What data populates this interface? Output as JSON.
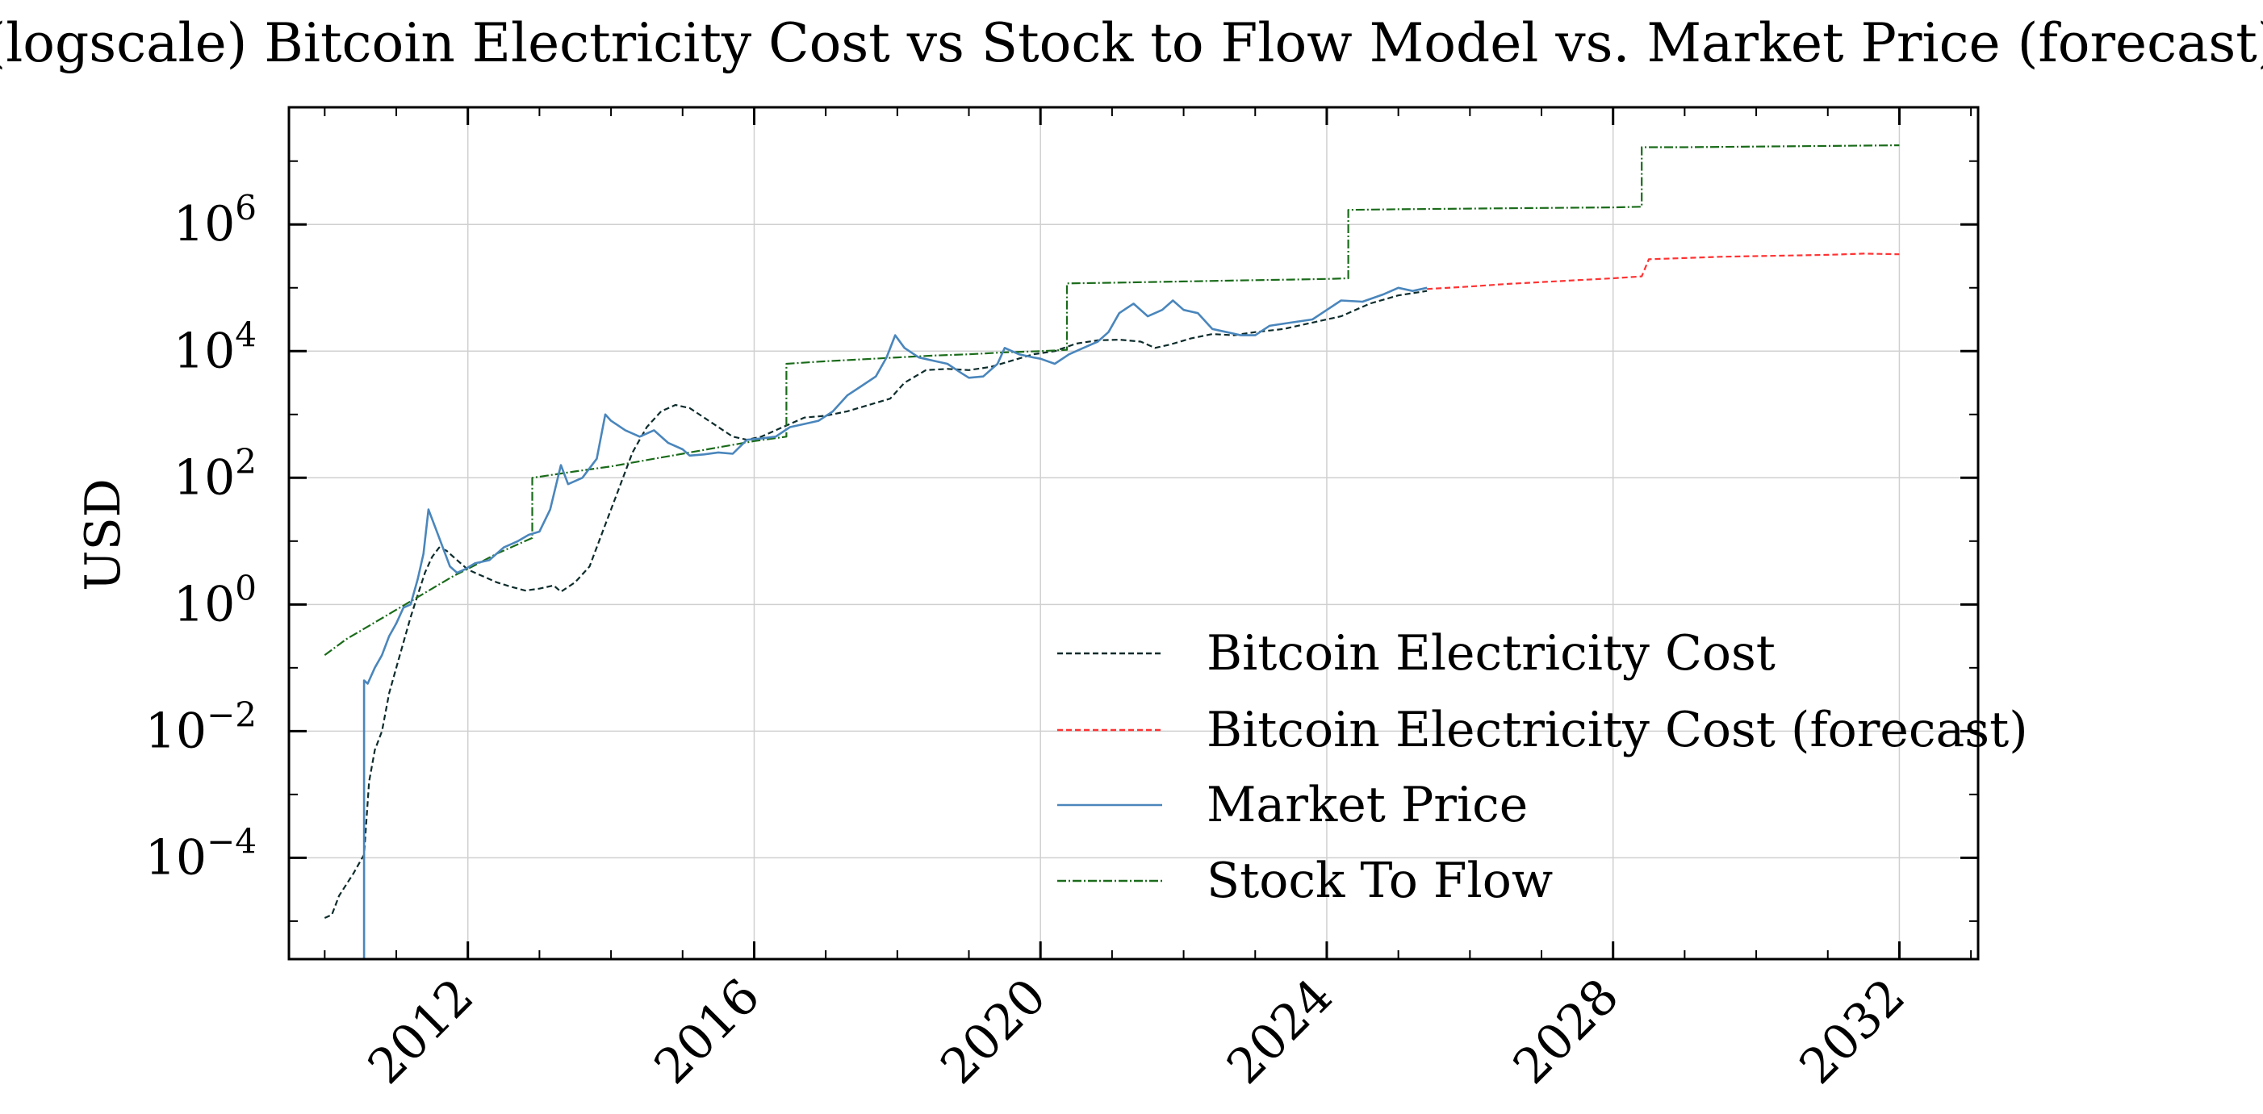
{
  "chart_data": {
    "type": "line",
    "title": "(logscale) Bitcoin Electricity Cost vs Stock to Flow Model vs. Market Price (forecast)",
    "xlabel": "",
    "ylabel": "USD",
    "yscale": "log",
    "xlim": [
      2009.5,
      2033.1
    ],
    "ylim_log10": [
      -5.6,
      7.85
    ],
    "grid": true,
    "legend_position": "lower-right",
    "x_ticks": [
      {
        "value": 2012,
        "label": "2012"
      },
      {
        "value": 2016,
        "label": "2016"
      },
      {
        "value": 2020,
        "label": "2020"
      },
      {
        "value": 2024,
        "label": "2024"
      },
      {
        "value": 2028,
        "label": "2028"
      },
      {
        "value": 2032,
        "label": "2032"
      }
    ],
    "y_ticks": [
      {
        "exp": -4,
        "base": "10",
        "sup": "−4"
      },
      {
        "exp": -2,
        "base": "10",
        "sup": "−2"
      },
      {
        "exp": 0,
        "base": "10",
        "sup": "0"
      },
      {
        "exp": 2,
        "base": "10",
        "sup": "2"
      },
      {
        "exp": 4,
        "base": "10",
        "sup": "4"
      },
      {
        "exp": 6,
        "base": "10",
        "sup": "6"
      }
    ],
    "series": [
      {
        "name": "Bitcoin Electricity Cost",
        "color": "#0d2b2b",
        "dash": "7,4",
        "points_log10": [
          [
            2010.0,
            -4.95
          ],
          [
            2010.1,
            -4.9
          ],
          [
            2010.2,
            -4.6
          ],
          [
            2010.4,
            -4.25
          ],
          [
            2010.55,
            -3.95
          ],
          [
            2010.62,
            -2.8
          ],
          [
            2010.7,
            -2.3
          ],
          [
            2010.8,
            -2.0
          ],
          [
            2010.9,
            -1.4
          ],
          [
            2011.0,
            -1.0
          ],
          [
            2011.1,
            -0.6
          ],
          [
            2011.2,
            -0.2
          ],
          [
            2011.3,
            0.15
          ],
          [
            2011.4,
            0.5
          ],
          [
            2011.5,
            0.75
          ],
          [
            2011.6,
            0.9
          ],
          [
            2011.7,
            0.85
          ],
          [
            2011.85,
            0.7
          ],
          [
            2012.0,
            0.55
          ],
          [
            2012.2,
            0.45
          ],
          [
            2012.4,
            0.35
          ],
          [
            2012.6,
            0.28
          ],
          [
            2012.8,
            0.22
          ],
          [
            2013.0,
            0.25
          ],
          [
            2013.2,
            0.3
          ],
          [
            2013.3,
            0.2
          ],
          [
            2013.5,
            0.35
          ],
          [
            2013.7,
            0.6
          ],
          [
            2013.9,
            1.2
          ],
          [
            2014.1,
            1.8
          ],
          [
            2014.3,
            2.4
          ],
          [
            2014.5,
            2.8
          ],
          [
            2014.7,
            3.05
          ],
          [
            2014.9,
            3.15
          ],
          [
            2015.1,
            3.1
          ],
          [
            2015.3,
            2.95
          ],
          [
            2015.5,
            2.8
          ],
          [
            2015.7,
            2.65
          ],
          [
            2015.9,
            2.6
          ],
          [
            2016.1,
            2.65
          ],
          [
            2016.3,
            2.75
          ],
          [
            2016.5,
            2.85
          ],
          [
            2016.7,
            2.95
          ],
          [
            2017.0,
            2.98
          ],
          [
            2017.3,
            3.05
          ],
          [
            2017.6,
            3.15
          ],
          [
            2017.9,
            3.25
          ],
          [
            2018.1,
            3.5
          ],
          [
            2018.4,
            3.7
          ],
          [
            2018.7,
            3.72
          ],
          [
            2019.0,
            3.7
          ],
          [
            2019.3,
            3.75
          ],
          [
            2019.6,
            3.85
          ],
          [
            2019.9,
            3.95
          ],
          [
            2020.2,
            4.0
          ],
          [
            2020.5,
            4.12
          ],
          [
            2020.8,
            4.17
          ],
          [
            2021.1,
            4.18
          ],
          [
            2021.4,
            4.15
          ],
          [
            2021.6,
            4.05
          ],
          [
            2021.8,
            4.1
          ],
          [
            2022.1,
            4.2
          ],
          [
            2022.4,
            4.27
          ],
          [
            2022.7,
            4.25
          ],
          [
            2023.0,
            4.3
          ],
          [
            2023.4,
            4.35
          ],
          [
            2023.8,
            4.45
          ],
          [
            2024.2,
            4.55
          ],
          [
            2024.6,
            4.75
          ],
          [
            2025.0,
            4.88
          ],
          [
            2025.4,
            4.95
          ]
        ]
      },
      {
        "name": "Bitcoin Electricity Cost (forecast)",
        "color": "#ff3333",
        "dash": "7,4",
        "points_log10": [
          [
            2025.4,
            4.98
          ],
          [
            2026.0,
            5.02
          ],
          [
            2026.5,
            5.06
          ],
          [
            2027.0,
            5.09
          ],
          [
            2027.5,
            5.12
          ],
          [
            2028.0,
            5.15
          ],
          [
            2028.4,
            5.18
          ],
          [
            2028.5,
            5.45
          ],
          [
            2029.0,
            5.47
          ],
          [
            2029.5,
            5.49
          ],
          [
            2030.0,
            5.5
          ],
          [
            2030.5,
            5.51
          ],
          [
            2031.0,
            5.52
          ],
          [
            2031.5,
            5.54
          ],
          [
            2032.0,
            5.53
          ]
        ]
      },
      {
        "name": "Market Price",
        "color": "#4a86bc",
        "dash": "",
        "points_log10": [
          [
            2010.55,
            -5.6
          ],
          [
            2010.55,
            -1.2
          ],
          [
            2010.6,
            -1.25
          ],
          [
            2010.7,
            -1.0
          ],
          [
            2010.8,
            -0.8
          ],
          [
            2010.9,
            -0.5
          ],
          [
            2011.0,
            -0.3
          ],
          [
            2011.1,
            -0.05
          ],
          [
            2011.2,
            0.0
          ],
          [
            2011.3,
            0.4
          ],
          [
            2011.38,
            0.8
          ],
          [
            2011.45,
            1.5
          ],
          [
            2011.55,
            1.2
          ],
          [
            2011.65,
            0.9
          ],
          [
            2011.75,
            0.6
          ],
          [
            2011.85,
            0.5
          ],
          [
            2011.95,
            0.55
          ],
          [
            2012.1,
            0.65
          ],
          [
            2012.3,
            0.7
          ],
          [
            2012.5,
            0.9
          ],
          [
            2012.7,
            1.0
          ],
          [
            2012.85,
            1.1
          ],
          [
            2013.0,
            1.15
          ],
          [
            2013.15,
            1.5
          ],
          [
            2013.3,
            2.2
          ],
          [
            2013.4,
            1.9
          ],
          [
            2013.6,
            2.0
          ],
          [
            2013.8,
            2.3
          ],
          [
            2013.92,
            3.0
          ],
          [
            2014.0,
            2.9
          ],
          [
            2014.2,
            2.75
          ],
          [
            2014.4,
            2.65
          ],
          [
            2014.6,
            2.75
          ],
          [
            2014.8,
            2.55
          ],
          [
            2015.0,
            2.45
          ],
          [
            2015.1,
            2.35
          ],
          [
            2015.3,
            2.37
          ],
          [
            2015.5,
            2.4
          ],
          [
            2015.7,
            2.38
          ],
          [
            2015.9,
            2.6
          ],
          [
            2016.1,
            2.62
          ],
          [
            2016.3,
            2.65
          ],
          [
            2016.5,
            2.8
          ],
          [
            2016.7,
            2.85
          ],
          [
            2016.9,
            2.9
          ],
          [
            2017.1,
            3.05
          ],
          [
            2017.3,
            3.3
          ],
          [
            2017.5,
            3.45
          ],
          [
            2017.7,
            3.6
          ],
          [
            2017.85,
            3.9
          ],
          [
            2017.97,
            4.25
          ],
          [
            2018.1,
            4.05
          ],
          [
            2018.3,
            3.9
          ],
          [
            2018.5,
            3.85
          ],
          [
            2018.7,
            3.8
          ],
          [
            2018.9,
            3.65
          ],
          [
            2019.0,
            3.58
          ],
          [
            2019.2,
            3.6
          ],
          [
            2019.4,
            3.8
          ],
          [
            2019.5,
            4.05
          ],
          [
            2019.7,
            3.95
          ],
          [
            2019.9,
            3.9
          ],
          [
            2020.0,
            3.88
          ],
          [
            2020.2,
            3.8
          ],
          [
            2020.4,
            3.95
          ],
          [
            2020.6,
            4.05
          ],
          [
            2020.8,
            4.15
          ],
          [
            2020.95,
            4.3
          ],
          [
            2021.1,
            4.6
          ],
          [
            2021.3,
            4.75
          ],
          [
            2021.5,
            4.55
          ],
          [
            2021.7,
            4.65
          ],
          [
            2021.85,
            4.8
          ],
          [
            2022.0,
            4.65
          ],
          [
            2022.2,
            4.6
          ],
          [
            2022.4,
            4.35
          ],
          [
            2022.6,
            4.3
          ],
          [
            2022.8,
            4.25
          ],
          [
            2023.0,
            4.25
          ],
          [
            2023.2,
            4.4
          ],
          [
            2023.5,
            4.45
          ],
          [
            2023.8,
            4.5
          ],
          [
            2024.0,
            4.65
          ],
          [
            2024.2,
            4.8
          ],
          [
            2024.5,
            4.78
          ],
          [
            2024.8,
            4.9
          ],
          [
            2025.0,
            5.0
          ],
          [
            2025.2,
            4.95
          ],
          [
            2025.4,
            5.0
          ]
        ]
      },
      {
        "name": "Stock To Flow",
        "color": "#1a6b1a",
        "dash": "11,3,2,3",
        "points_log10": [
          [
            2010.0,
            -0.8
          ],
          [
            2010.3,
            -0.55
          ],
          [
            2010.6,
            -0.35
          ],
          [
            2010.9,
            -0.15
          ],
          [
            2011.2,
            0.05
          ],
          [
            2011.5,
            0.25
          ],
          [
            2011.8,
            0.45
          ],
          [
            2012.1,
            0.62
          ],
          [
            2012.4,
            0.8
          ],
          [
            2012.7,
            0.95
          ],
          [
            2012.9,
            1.05
          ],
          [
            2012.9,
            2.0
          ],
          [
            2013.5,
            2.1
          ],
          [
            2014.0,
            2.18
          ],
          [
            2014.5,
            2.28
          ],
          [
            2015.0,
            2.38
          ],
          [
            2015.5,
            2.48
          ],
          [
            2016.0,
            2.58
          ],
          [
            2016.45,
            2.65
          ],
          [
            2016.45,
            3.8
          ],
          [
            2017.0,
            3.84
          ],
          [
            2017.5,
            3.87
          ],
          [
            2018.0,
            3.9
          ],
          [
            2018.5,
            3.93
          ],
          [
            2019.0,
            3.95
          ],
          [
            2019.5,
            3.98
          ],
          [
            2020.0,
            4.0
          ],
          [
            2020.37,
            4.02
          ],
          [
            2020.37,
            5.07
          ],
          [
            2021.0,
            5.08
          ],
          [
            2021.5,
            5.09
          ],
          [
            2022.0,
            5.1
          ],
          [
            2022.5,
            5.11
          ],
          [
            2023.0,
            5.12
          ],
          [
            2023.5,
            5.13
          ],
          [
            2024.0,
            5.14
          ],
          [
            2024.3,
            5.15
          ],
          [
            2024.3,
            6.23
          ],
          [
            2025.0,
            6.24
          ],
          [
            2026.0,
            6.25
          ],
          [
            2027.0,
            6.26
          ],
          [
            2028.0,
            6.27
          ],
          [
            2028.4,
            6.28
          ],
          [
            2028.4,
            7.22
          ],
          [
            2029.0,
            7.22
          ],
          [
            2030.0,
            7.23
          ],
          [
            2031.0,
            7.24
          ],
          [
            2032.0,
            7.25
          ]
        ]
      }
    ]
  }
}
